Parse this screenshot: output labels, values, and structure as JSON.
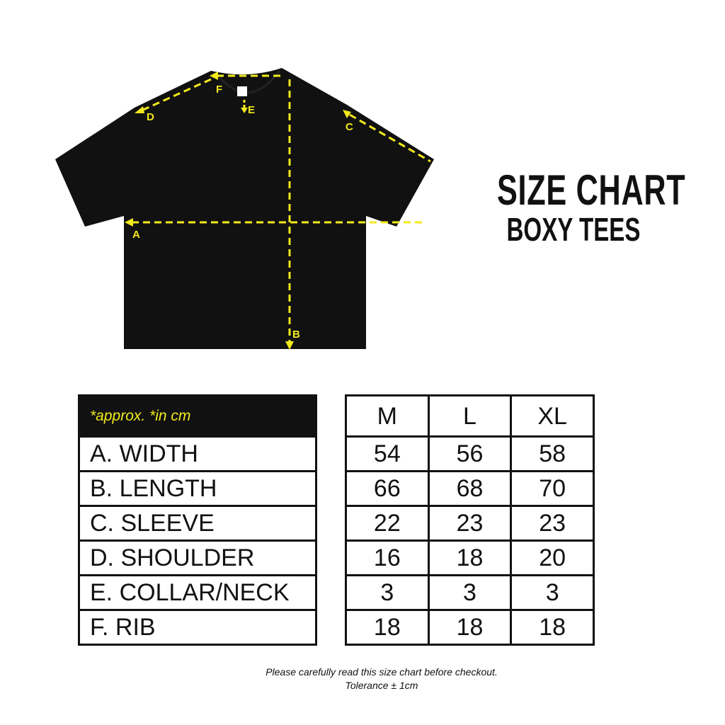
{
  "header": {
    "title": "SIZE CHART",
    "subtitle": "BOXY TEES"
  },
  "diagram": {
    "labels": [
      "A",
      "B",
      "C",
      "D",
      "E",
      "F"
    ],
    "shirt_color": "#111111",
    "guide_color": "#f2ea1c"
  },
  "table": {
    "note": "*approx. *in cm",
    "sizes": [
      "M",
      "L",
      "XL"
    ],
    "rows": [
      {
        "label": "A. WIDTH",
        "values": [
          "54",
          "56",
          "58"
        ]
      },
      {
        "label": "B. LENGTH",
        "values": [
          "66",
          "68",
          "70"
        ]
      },
      {
        "label": "C. SLEEVE",
        "values": [
          "22",
          "23",
          "23"
        ]
      },
      {
        "label": "D. SHOULDER",
        "values": [
          "16",
          "18",
          "20"
        ]
      },
      {
        "label": "E. COLLAR/NECK",
        "values": [
          "3",
          "3",
          "3"
        ]
      },
      {
        "label": "F. RIB",
        "values": [
          "18",
          "18",
          "18"
        ]
      }
    ]
  },
  "footer": {
    "line1": "Please carefully read this size chart before checkout.",
    "line2": "Tolerance ± 1cm"
  }
}
